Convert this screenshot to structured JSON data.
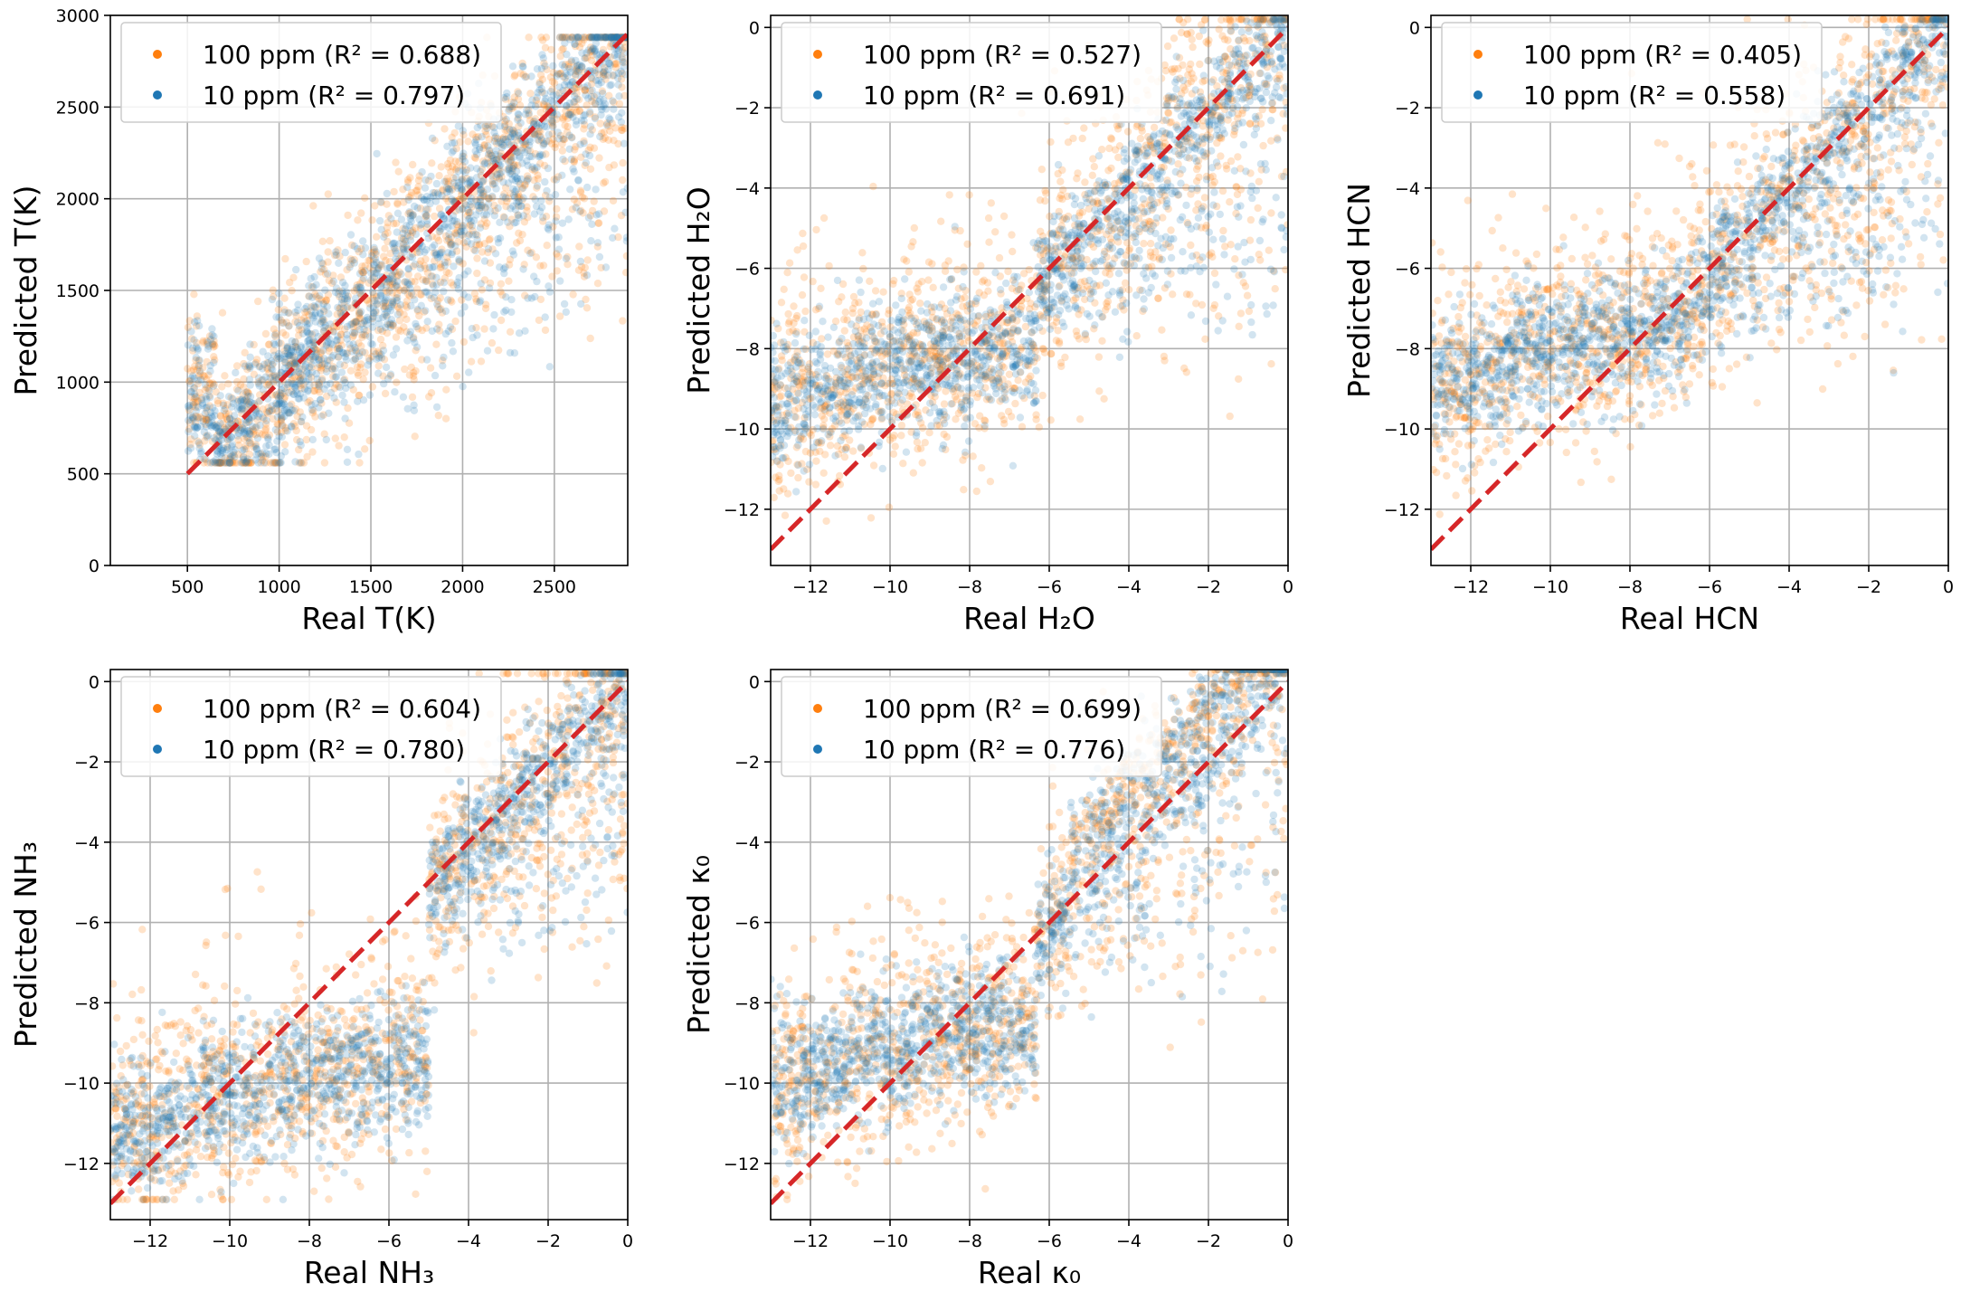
{
  "colors": {
    "orange": "#ff7f0e",
    "blue": "#1f77b4",
    "identity": "#d62728",
    "grid": "#b0b0b0"
  },
  "chart_data": [
    {
      "type": "scatter",
      "title": "",
      "xlabel": "Real T(K)",
      "ylabel": "Predicted T(K)",
      "xlim": [
        80,
        2900
      ],
      "ylim": [
        0,
        3000
      ],
      "xticks": [
        500,
        1000,
        1500,
        2000,
        2500
      ],
      "yticks": [
        0,
        500,
        1000,
        1500,
        2000,
        2500,
        3000
      ],
      "tick_labels_x": [
        "500",
        "1000",
        "1500",
        "2000",
        "2500"
      ],
      "tick_labels_y": [
        "0",
        "500",
        "1000",
        "1500",
        "2000",
        "2500",
        "3000"
      ],
      "grid": true,
      "legend": "top-left",
      "identity_line": [
        [
          500,
          500
        ],
        [
          2900,
          2900
        ]
      ],
      "series": [
        {
          "name": "100 ppm",
          "label": "100 ppm (R² = 0.688)",
          "r2": 0.688,
          "color": "#ff7f0e"
        },
        {
          "name": "10 ppm",
          "label": "10 ppm (R² = 0.797)",
          "r2": 0.797,
          "color": "#1f77b4"
        }
      ]
    },
    {
      "type": "scatter",
      "title": "",
      "xlabel": "Real H₂O",
      "ylabel": "Predicted H₂O",
      "xlim": [
        -13,
        0
      ],
      "ylim": [
        -13.4,
        0.3
      ],
      "xticks": [
        -12,
        -10,
        -8,
        -6,
        -4,
        -2,
        0
      ],
      "yticks": [
        -12,
        -10,
        -8,
        -6,
        -4,
        -2,
        0
      ],
      "tick_labels_x": [
        "−12",
        "−10",
        "−8",
        "−6",
        "−4",
        "−2",
        "0"
      ],
      "tick_labels_y": [
        "−12",
        "−10",
        "−8",
        "−6",
        "−4",
        "−2",
        "0"
      ],
      "grid": true,
      "legend": "top-left",
      "identity_line": [
        [
          -13,
          -13
        ],
        [
          0,
          0
        ]
      ],
      "series": [
        {
          "name": "100 ppm",
          "label": "100 ppm (R² = 0.527)",
          "r2": 0.527,
          "color": "#ff7f0e"
        },
        {
          "name": "10 ppm",
          "label": "10 ppm (R² = 0.691)",
          "r2": 0.691,
          "color": "#1f77b4"
        }
      ]
    },
    {
      "type": "scatter",
      "title": "",
      "xlabel": "Real HCN",
      "ylabel": "Predicted HCN",
      "xlim": [
        -13,
        0
      ],
      "ylim": [
        -13.4,
        0.3
      ],
      "xticks": [
        -12,
        -10,
        -8,
        -6,
        -4,
        -2,
        0
      ],
      "yticks": [
        -12,
        -10,
        -8,
        -6,
        -4,
        -2,
        0
      ],
      "tick_labels_x": [
        "−12",
        "−10",
        "−8",
        "−6",
        "−4",
        "−2",
        "0"
      ],
      "tick_labels_y": [
        "−12",
        "−10",
        "−8",
        "−6",
        "−4",
        "−2",
        "0"
      ],
      "grid": true,
      "legend": "top-left",
      "identity_line": [
        [
          -13,
          -13
        ],
        [
          0,
          0
        ]
      ],
      "series": [
        {
          "name": "100 ppm",
          "label": "100 ppm (R² = 0.405)",
          "r2": 0.405,
          "color": "#ff7f0e"
        },
        {
          "name": "10 ppm",
          "label": "10 ppm (R² = 0.558)",
          "r2": 0.558,
          "color": "#1f77b4"
        }
      ]
    },
    {
      "type": "scatter",
      "title": "",
      "xlabel": "Real NH₃",
      "ylabel": "Predicted NH₃",
      "xlim": [
        -13,
        0
      ],
      "ylim": [
        -13.4,
        0.3
      ],
      "xticks": [
        -12,
        -10,
        -8,
        -6,
        -4,
        -2,
        0
      ],
      "yticks": [
        -12,
        -10,
        -8,
        -6,
        -4,
        -2,
        0
      ],
      "tick_labels_x": [
        "−12",
        "−10",
        "−8",
        "−6",
        "−4",
        "−2",
        "0"
      ],
      "tick_labels_y": [
        "−12",
        "−10",
        "−8",
        "−6",
        "−4",
        "−2",
        "0"
      ],
      "grid": true,
      "legend": "top-left",
      "identity_line": [
        [
          -13,
          -13
        ],
        [
          0,
          0
        ]
      ],
      "series": [
        {
          "name": "100 ppm",
          "label": "100 ppm (R² = 0.604)",
          "r2": 0.604,
          "color": "#ff7f0e"
        },
        {
          "name": "10 ppm",
          "label": "10 ppm (R² = 0.780)",
          "r2": 0.78,
          "color": "#1f77b4"
        }
      ]
    },
    {
      "type": "scatter",
      "title": "",
      "xlabel": "Real κ₀",
      "ylabel": "Predicted κ₀",
      "xlim": [
        -13,
        0
      ],
      "ylim": [
        -13.4,
        0.3
      ],
      "xticks": [
        -12,
        -10,
        -8,
        -6,
        -4,
        -2,
        0
      ],
      "yticks": [
        -12,
        -10,
        -8,
        -6,
        -4,
        -2,
        0
      ],
      "tick_labels_x": [
        "−12",
        "−10",
        "−8",
        "−6",
        "−4",
        "−2",
        "0"
      ],
      "tick_labels_y": [
        "−12",
        "−10",
        "−8",
        "−6",
        "−4",
        "−2",
        "0"
      ],
      "grid": true,
      "legend": "top-left",
      "identity_line": [
        [
          -13,
          -13
        ],
        [
          0,
          0
        ]
      ],
      "series": [
        {
          "name": "100 ppm",
          "label": "100 ppm (R² = 0.699)",
          "r2": 0.699,
          "color": "#ff7f0e"
        },
        {
          "name": "10 ppm",
          "label": "10 ppm (R² = 0.776)",
          "r2": 0.776,
          "color": "#1f77b4"
        }
      ]
    }
  ]
}
